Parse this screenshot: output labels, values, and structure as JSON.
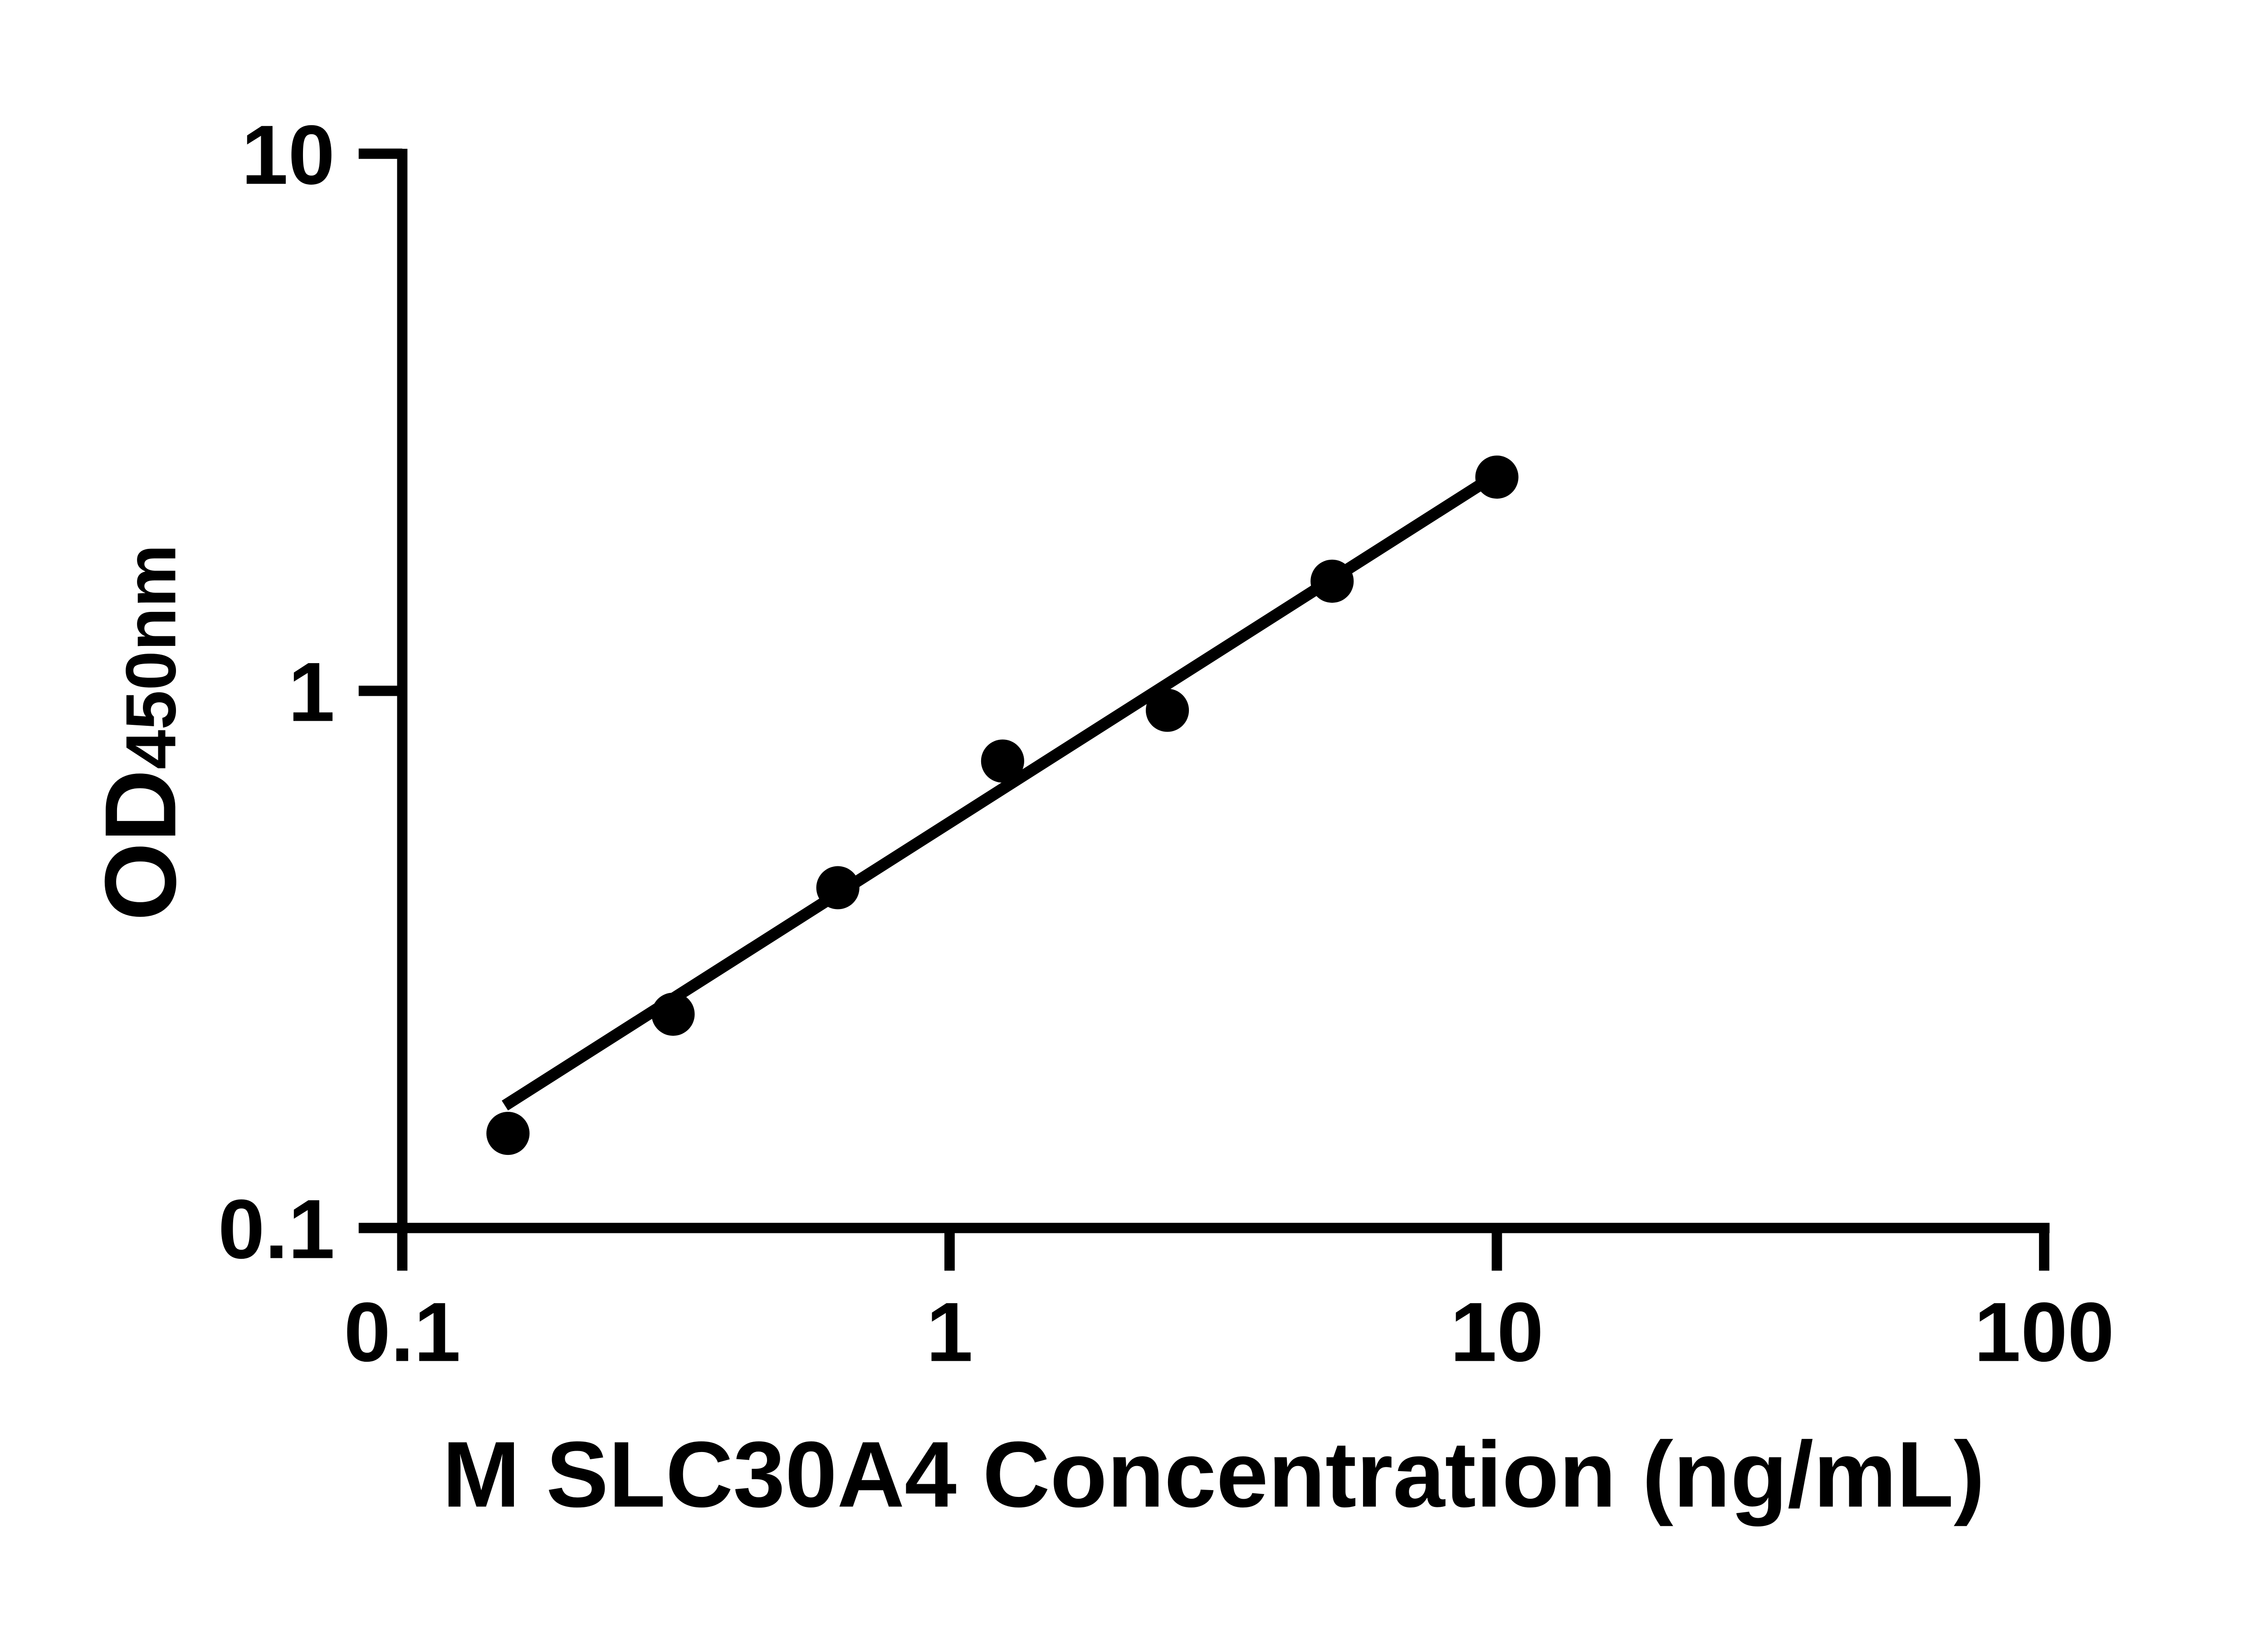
{
  "figure": {
    "background": "#ffffff",
    "foreground": "#000000"
  },
  "chart_data": {
    "type": "scatter",
    "title": "",
    "xlabel": "M SLC30A4 Concentration (ng/mL)",
    "ylabel": "OD450nm",
    "ylabel_main": "OD",
    "ylabel_sub": "450nm",
    "x_scale": "log10",
    "y_scale": "log10",
    "xlim": [
      0.1,
      100
    ],
    "ylim": [
      0.1,
      10
    ],
    "grid": false,
    "legend_position": "none",
    "x_ticks": [
      {
        "value": 0.1,
        "label": "0.1"
      },
      {
        "value": 1,
        "label": "1"
      },
      {
        "value": 10,
        "label": "10"
      },
      {
        "value": 100,
        "label": "100"
      }
    ],
    "y_ticks": [
      {
        "value": 10,
        "label": "10"
      },
      {
        "value": 1,
        "label": "1"
      },
      {
        "value": 0.1,
        "label": "0.1"
      }
    ],
    "series": [
      {
        "name": "standard-curve-points",
        "marker": "circle",
        "color": "#000000",
        "points": [
          {
            "x": 0.156,
            "y": 0.15
          },
          {
            "x": 0.3125,
            "y": 0.25
          },
          {
            "x": 0.625,
            "y": 0.43
          },
          {
            "x": 1.25,
            "y": 0.74
          },
          {
            "x": 2.5,
            "y": 0.92
          },
          {
            "x": 5,
            "y": 1.6
          },
          {
            "x": 10,
            "y": 2.5
          }
        ]
      }
    ],
    "trendline": {
      "type": "linear-fit-loglog",
      "x1": 0.154,
      "y1": 0.169,
      "x2": 10,
      "y2": 2.53
    }
  }
}
